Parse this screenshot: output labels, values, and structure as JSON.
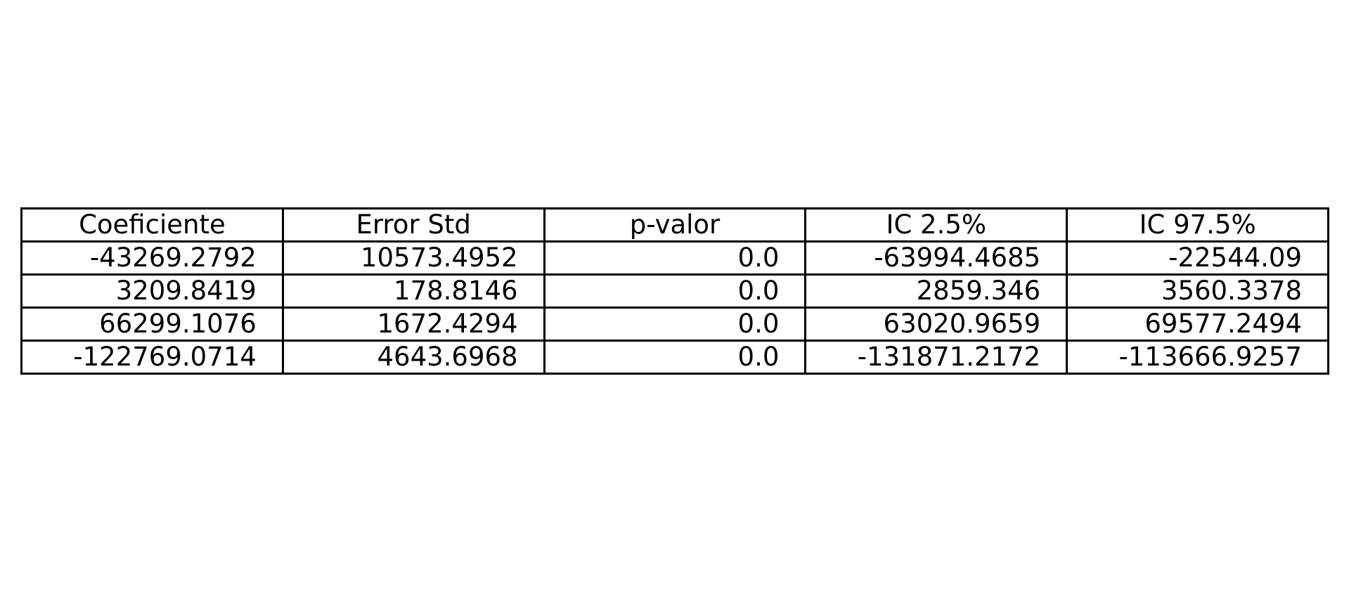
{
  "chart_data": {
    "type": "table",
    "columns": [
      "Coeficiente",
      "Error Std",
      "p-valor",
      "IC 2.5%",
      "IC 97.5%"
    ],
    "rows": [
      [
        "-43269.2792",
        "10573.4952",
        "0.0",
        "-63994.4685",
        "-22544.09"
      ],
      [
        "3209.8419",
        "178.8146",
        "0.0",
        "2859.346",
        "3560.3378"
      ],
      [
        "66299.1076",
        "1672.4294",
        "0.0",
        "63020.9659",
        "69577.2494"
      ],
      [
        "-122769.0714",
        "4643.6968",
        "0.0",
        "-131871.2172",
        "-113666.9257"
      ]
    ]
  }
}
